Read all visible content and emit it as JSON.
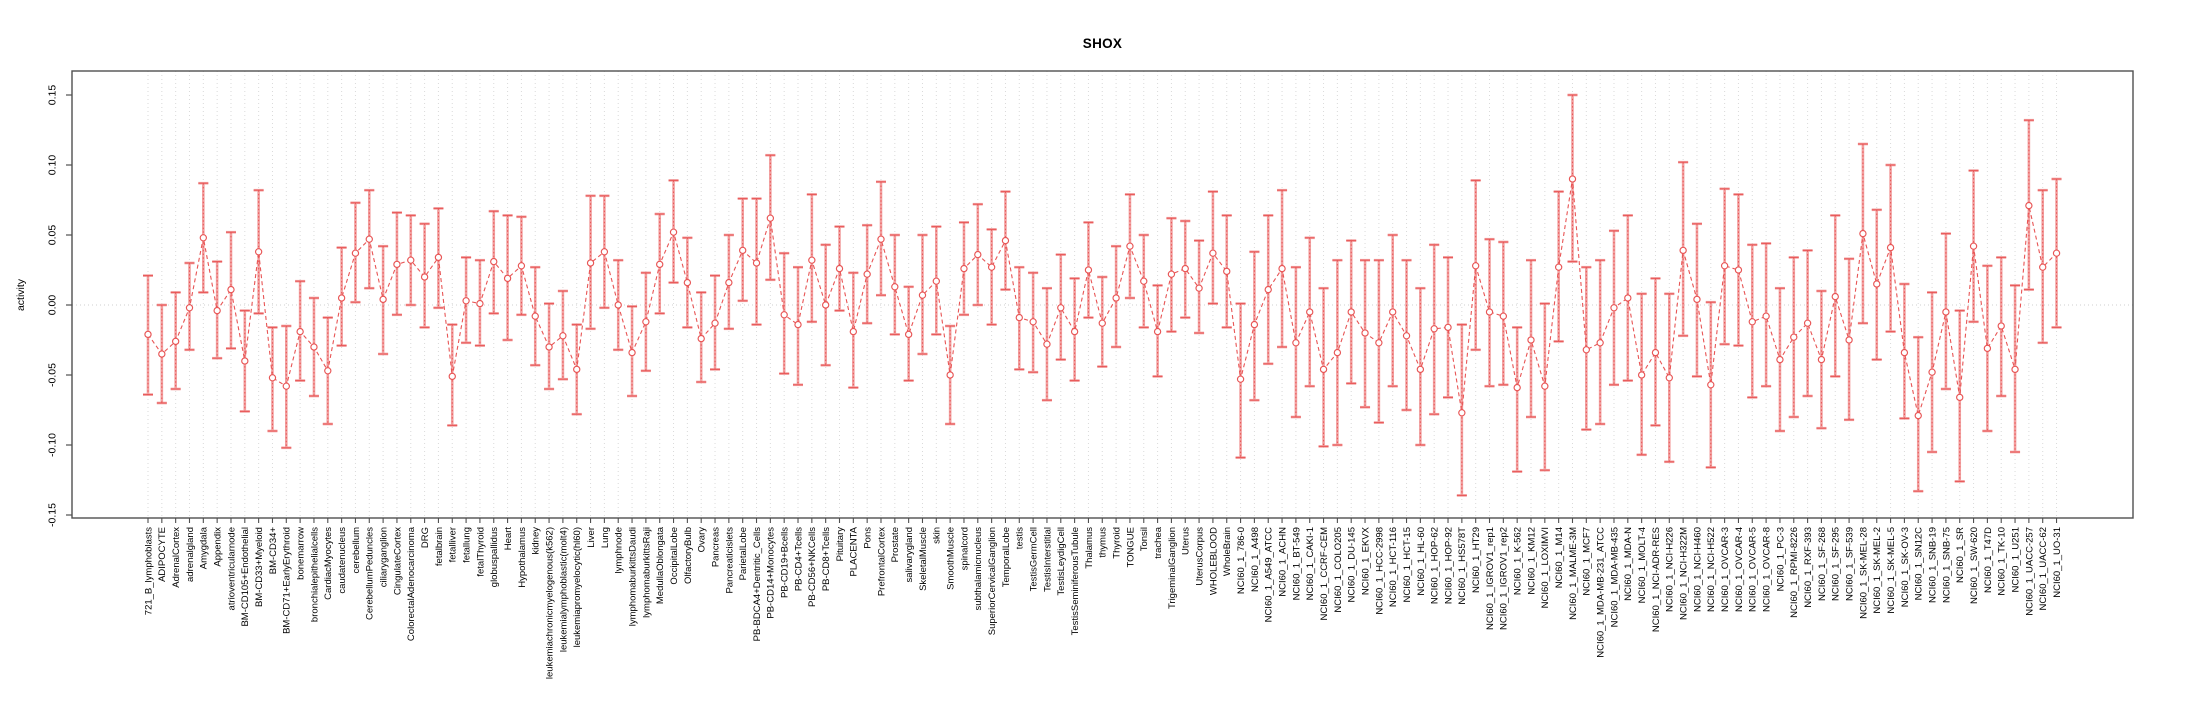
{
  "figure": {
    "title": "SHOX",
    "ylabel": "activity"
  },
  "colors": {
    "point": "#e85555",
    "series_line": "#e85555",
    "errorbar_heavy": "#f2a0a0",
    "errorbar_light": "#e85555",
    "grid": "#dadada",
    "zero_line": "#cfcfcf",
    "axis_box": "#4f4f4f",
    "background": "#ffffff"
  },
  "chart_data": {
    "type": "line",
    "subtype": "points-with-error-bars",
    "title": "SHOX",
    "xlabel": "",
    "ylabel": "activity",
    "ylim": [
      -0.155,
      0.165
    ],
    "ytick_values": [
      -0.15,
      -0.1,
      -0.05,
      0.0,
      0.05,
      0.1,
      0.15
    ],
    "ytick_labels": [
      "-0.15",
      "-0.10",
      "-0.05",
      "0.00",
      "0.05",
      "0.10",
      "0.15"
    ],
    "grid": "vertical dotted gridline per category; dotted horizontal line at 0",
    "legend_position": "none",
    "categories": [
      "721_B_lymphoblasts",
      "ADIPOCYTE",
      "AdrenalCortex",
      "adrenalgland",
      "Amygdala",
      "Appendix",
      "atrioventricularnode",
      "BM-CD105+Endothelial",
      "BM-CD33+Myeloid",
      "BM-CD34+",
      "BM-CD71+EarlyErythroid",
      "bonemarrow",
      "bronchialepithelialcells",
      "CardiacMyocytes",
      "caudatenucleus",
      "cerebellum",
      "CerebellumPeduncles",
      "ciliaryganglion",
      "CingulateCortex",
      "ColorectalAdenocarcinoma",
      "DRG",
      "fetalbrain",
      "fetalliver",
      "fetallung",
      "fetalThyroid",
      "globuspallidus",
      "Heart",
      "Hypothalamus",
      "kidney",
      "leukemiachronicmyelogenous(k562)",
      "leukemialymphoblastic(molt4)",
      "leukemiapromyelocytic(hl60)",
      "Liver",
      "Lung",
      "lymphnode",
      "lymphomaburkittsDaudi",
      "lymphomaburkittsRaji",
      "MedullaOblongata",
      "OccipitalLobe",
      "OlfactoryBulb",
      "Ovary",
      "Pancreas",
      "Pancreaticislets",
      "ParietalLobe",
      "PB-BDCA4+Dentritic_Cells",
      "PB-CD14+Monocytes",
      "PB-CD19+Bcells",
      "PB-CD4+Tcells",
      "PB-CD56+NKCells",
      "PB-CD8+Tcells",
      "Pituitary",
      "PLACENTA",
      "Pons",
      "PrefrontalCortex",
      "Prostate",
      "salivarygland",
      "SkeletalMuscle",
      "skin",
      "SmoothMuscle",
      "spinalcord",
      "subthalamicnucleus",
      "SuperiorCervicalGanglion",
      "TemporalLobe",
      "testis",
      "TestisGermCell",
      "TestisInterstitial",
      "TestisLeydigCell",
      "TestisSeminiferousTubule",
      "Thalamus",
      "thymus",
      "Thyroid",
      "TONGUE",
      "Tonsil",
      "trachea",
      "TrigeminalGanglion",
      "Uterus",
      "UterusCorpus",
      "WHOLEBLOOD",
      "WholeBrain",
      "NCI60_1_786-0",
      "NCI60_1_A498",
      "NCI60_1_A549_ATCC",
      "NCI60_1_ACHN",
      "NCI60_1_BT-549",
      "NCI60_1_CAKI-1",
      "NCI60_1_CCRF-CEM",
      "NCI60_1_COLO205",
      "NCI60_1_DU-145",
      "NCI60_1_EKVX",
      "NCI60_1_HCC-2998",
      "NCI60_1_HCT-116",
      "NCI60_1_HCT-15",
      "NCI60_1_HL-60",
      "NCI60_1_HOP-62",
      "NCI60_1_HOP-92",
      "NCI60_1_HS578T",
      "NCI60_1_HT29",
      "NCI60_1_IGROV1_rep1",
      "NCI60_1_IGROV1_rep2",
      "NCI60_1_K-562",
      "NCI60_1_KM12",
      "NCI60_1_LOXIMVI",
      "NCI60_1_M14",
      "NCI60_1_MALME-3M",
      "NCI60_1_MCF7",
      "NCI60_1_MDA-MB-231_ATCC",
      "NCI60_1_MDA-MB-435",
      "NCI60_1_MDA-N",
      "NCI60_1_MOLT-4",
      "NCI60_1_NCI-ADR-RES",
      "NCI60_1_NCI-H226",
      "NCI60_1_NCI-H322M",
      "NCI60_1_NCI-H460",
      "NCI60_1_NCI-H522",
      "NCI60_1_OVCAR-3",
      "NCI60_1_OVCAR-4",
      "NCI60_1_OVCAR-5",
      "NCI60_1_OVCAR-8",
      "NCI60_1_PC-3",
      "NCI60_1_RPMI-8226",
      "NCI60_1_RXF-393",
      "NCI60_1_SF-268",
      "NCI60_1_SF-295",
      "NCI60_1_SF-539",
      "NCI60_1_SK-MEL-28",
      "NCI60_1_SK-MEL-2",
      "NCI60_1_SK-MEL-5",
      "NCI60_1_SK-OV-3",
      "NCI60_1_SN12C",
      "NCI60_1_SNB-19",
      "NCI60_1_SNB-75",
      "NCI60_1_SR",
      "NCI60_1_SW-620",
      "NCI60_1_T47D",
      "NCI60_1_TK-10",
      "NCI60_1_U251",
      "NCI60_1_UACC-257",
      "NCI60_1_UACC-62",
      "NCI60_1_UO-31"
    ],
    "values": [
      -0.021,
      -0.035,
      -0.026,
      -0.002,
      0.048,
      -0.004,
      0.011,
      -0.04,
      0.038,
      -0.052,
      -0.058,
      -0.019,
      -0.03,
      -0.047,
      0.005,
      0.037,
      0.047,
      0.004,
      0.029,
      0.032,
      0.02,
      0.034,
      -0.051,
      0.003,
      0.001,
      0.031,
      0.019,
      0.028,
      -0.008,
      -0.03,
      -0.022,
      -0.046,
      0.03,
      0.038,
      0.0,
      -0.034,
      -0.012,
      0.029,
      0.052,
      0.016,
      -0.024,
      -0.013,
      0.016,
      0.039,
      0.03,
      0.062,
      -0.007,
      -0.014,
      0.032,
      0.0,
      0.026,
      -0.019,
      0.022,
      0.047,
      0.013,
      -0.021,
      0.007,
      0.017,
      -0.05,
      0.026,
      0.036,
      0.027,
      0.046,
      -0.009,
      -0.012,
      -0.028,
      -0.002,
      -0.019,
      0.025,
      -0.013,
      0.005,
      0.042,
      0.017,
      -0.019,
      0.022,
      0.026,
      0.012,
      0.037,
      0.024,
      -0.053,
      -0.014,
      0.011,
      0.026,
      -0.027,
      -0.005,
      -0.046,
      -0.034,
      -0.005,
      -0.02,
      -0.027,
      -0.005,
      -0.022,
      -0.046,
      -0.017,
      -0.016,
      -0.077,
      0.028,
      -0.005,
      -0.008,
      -0.059,
      -0.025,
      -0.058,
      0.027,
      0.09,
      -0.032,
      -0.027,
      -0.002,
      0.005,
      -0.05,
      -0.034,
      -0.052,
      0.039,
      0.004,
      -0.057,
      0.028,
      0.025,
      -0.012,
      -0.008,
      -0.039,
      -0.023,
      -0.013,
      -0.039,
      0.006,
      -0.025,
      0.051,
      0.015,
      0.041,
      -0.034,
      -0.079,
      -0.048,
      -0.005,
      -0.066,
      0.042,
      -0.031,
      -0.015,
      -0.046,
      0.071,
      0.027,
      0.037
    ],
    "err_low": [
      -0.064,
      -0.07,
      -0.06,
      -0.032,
      0.009,
      -0.038,
      -0.031,
      -0.076,
      -0.006,
      -0.09,
      -0.102,
      -0.054,
      -0.065,
      -0.085,
      -0.029,
      0.002,
      0.012,
      -0.035,
      -0.007,
      0.0,
      -0.016,
      -0.002,
      -0.086,
      -0.027,
      -0.029,
      -0.006,
      -0.025,
      -0.007,
      -0.043,
      -0.06,
      -0.053,
      -0.078,
      -0.017,
      -0.002,
      -0.032,
      -0.065,
      -0.047,
      -0.006,
      0.016,
      -0.016,
      -0.055,
      -0.046,
      -0.017,
      0.003,
      -0.014,
      0.018,
      -0.049,
      -0.057,
      -0.012,
      -0.043,
      -0.004,
      -0.059,
      -0.013,
      0.007,
      -0.021,
      -0.054,
      -0.035,
      -0.021,
      -0.085,
      -0.007,
      0.0,
      -0.014,
      0.011,
      -0.046,
      -0.048,
      -0.068,
      -0.039,
      -0.054,
      -0.009,
      -0.044,
      -0.03,
      0.005,
      -0.016,
      -0.051,
      -0.019,
      -0.009,
      -0.02,
      0.001,
      -0.016,
      -0.109,
      -0.068,
      -0.042,
      -0.03,
      -0.08,
      -0.058,
      -0.101,
      -0.1,
      -0.056,
      -0.073,
      -0.084,
      -0.058,
      -0.075,
      -0.1,
      -0.078,
      -0.066,
      -0.136,
      -0.032,
      -0.058,
      -0.057,
      -0.119,
      -0.08,
      -0.118,
      -0.026,
      0.031,
      -0.089,
      -0.085,
      -0.057,
      -0.054,
      -0.107,
      -0.086,
      -0.112,
      -0.022,
      -0.051,
      -0.116,
      -0.028,
      -0.029,
      -0.066,
      -0.058,
      -0.09,
      -0.08,
      -0.065,
      -0.088,
      -0.051,
      -0.082,
      -0.013,
      -0.039,
      -0.019,
      -0.081,
      -0.133,
      -0.105,
      -0.06,
      -0.126,
      -0.012,
      -0.09,
      -0.065,
      -0.105,
      0.011,
      -0.027,
      -0.016
    ],
    "err_high": [
      0.021,
      0.0,
      0.009,
      0.03,
      0.087,
      0.031,
      0.052,
      -0.004,
      0.082,
      -0.016,
      -0.015,
      0.017,
      0.005,
      -0.009,
      0.041,
      0.073,
      0.082,
      0.042,
      0.066,
      0.064,
      0.058,
      0.069,
      -0.014,
      0.034,
      0.032,
      0.067,
      0.064,
      0.063,
      0.027,
      0.001,
      0.01,
      -0.014,
      0.078,
      0.078,
      0.032,
      -0.001,
      0.023,
      0.065,
      0.089,
      0.048,
      0.009,
      0.021,
      0.05,
      0.076,
      0.076,
      0.107,
      0.037,
      0.027,
      0.079,
      0.043,
      0.056,
      0.023,
      0.057,
      0.088,
      0.05,
      0.013,
      0.05,
      0.056,
      -0.015,
      0.059,
      0.072,
      0.054,
      0.081,
      0.027,
      0.023,
      0.012,
      0.036,
      0.019,
      0.059,
      0.02,
      0.042,
      0.079,
      0.05,
      0.014,
      0.062,
      0.06,
      0.046,
      0.081,
      0.064,
      0.001,
      0.038,
      0.064,
      0.082,
      0.027,
      0.048,
      0.012,
      0.032,
      0.046,
      0.032,
      0.032,
      0.05,
      0.032,
      0.012,
      0.043,
      0.034,
      -0.014,
      0.089,
      0.047,
      0.045,
      -0.016,
      0.032,
      0.001,
      0.081,
      0.15,
      0.027,
      0.032,
      0.053,
      0.064,
      0.008,
      0.019,
      0.008,
      0.102,
      0.058,
      0.002,
      0.083,
      0.079,
      0.043,
      0.044,
      0.012,
      0.034,
      0.039,
      0.01,
      0.064,
      0.033,
      0.115,
      0.068,
      0.1,
      0.015,
      -0.023,
      0.009,
      0.051,
      -0.004,
      0.096,
      0.028,
      0.034,
      0.014,
      0.132,
      0.082,
      0.09
    ]
  }
}
